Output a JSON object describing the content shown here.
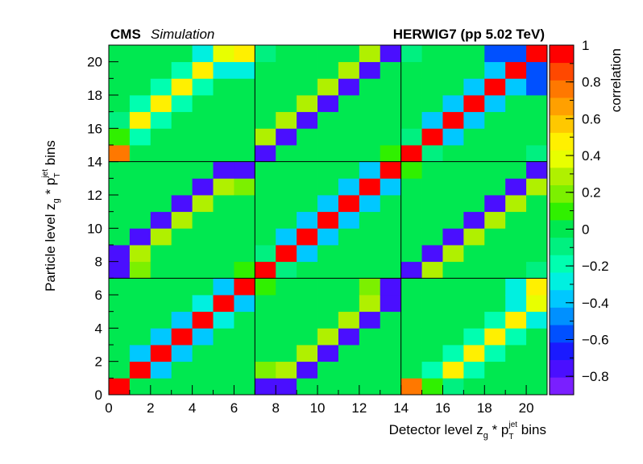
{
  "header": {
    "experiment": "CMS",
    "status": "Simulation",
    "generator": "HERWIG7 (pp 5.02 TeV)"
  },
  "chart_data": {
    "type": "heatmap",
    "xlabel": "Detector level z_g * p_T^jet bins",
    "ylabel": "Particle level z_g * p_T^jet bins",
    "zlabel": "correlation",
    "xlim": [
      0,
      21
    ],
    "ylim": [
      0,
      21
    ],
    "zlim": [
      -0.9,
      1.0
    ],
    "xticks": [
      "0",
      "2",
      "4",
      "6",
      "8",
      "10",
      "12",
      "14",
      "16",
      "18",
      "20"
    ],
    "yticks": [
      "0",
      "2",
      "4",
      "6",
      "8",
      "10",
      "12",
      "14",
      "16",
      "18",
      "20"
    ],
    "zticks": [
      "−0.8",
      "−0.6",
      "−0.4",
      "−0.2",
      "0",
      "0.2",
      "0.4",
      "0.6",
      "0.8",
      "1"
    ],
    "zticks_values": [
      -0.8,
      -0.6,
      -0.4,
      -0.2,
      0,
      0.2,
      0.4,
      0.6,
      0.8,
      1
    ],
    "block_boundaries": [
      7,
      14
    ],
    "default_value": 0.0,
    "cells": [
      [
        0,
        0,
        1.0
      ],
      [
        1,
        1,
        1.0
      ],
      [
        2,
        2,
        1.0
      ],
      [
        3,
        3,
        1.0
      ],
      [
        4,
        4,
        1.0
      ],
      [
        5,
        5,
        1.0
      ],
      [
        6,
        6,
        1.0
      ],
      [
        7,
        7,
        1.0
      ],
      [
        8,
        8,
        1.0
      ],
      [
        9,
        9,
        1.0
      ],
      [
        10,
        10,
        1.0
      ],
      [
        11,
        11,
        1.0
      ],
      [
        12,
        12,
        1.0
      ],
      [
        13,
        13,
        1.0
      ],
      [
        1,
        0,
        0.0
      ],
      [
        0,
        1,
        0.0
      ],
      [
        1,
        2,
        -0.4
      ],
      [
        2,
        1,
        -0.4
      ],
      [
        2,
        3,
        -0.4
      ],
      [
        3,
        2,
        -0.4
      ],
      [
        3,
        4,
        -0.4
      ],
      [
        4,
        3,
        -0.4
      ],
      [
        4,
        5,
        -0.25
      ],
      [
        5,
        4,
        -0.25
      ],
      [
        5,
        6,
        -0.4
      ],
      [
        6,
        5,
        -0.4
      ],
      [
        6,
        0,
        0.0
      ],
      [
        0,
        6,
        0.0
      ],
      [
        7,
        0,
        -0.8
      ],
      [
        0,
        7,
        -0.8
      ],
      [
        7,
        1,
        0.2
      ],
      [
        1,
        7,
        0.2
      ],
      [
        7,
        6,
        0.1
      ],
      [
        6,
        7,
        0.1
      ],
      [
        7,
        8,
        -0.1
      ],
      [
        8,
        7,
        -0.1
      ],
      [
        8,
        9,
        -0.4
      ],
      [
        9,
        8,
        -0.4
      ],
      [
        9,
        10,
        -0.4
      ],
      [
        10,
        9,
        -0.4
      ],
      [
        10,
        11,
        -0.4
      ],
      [
        11,
        10,
        -0.4
      ],
      [
        11,
        12,
        -0.4
      ],
      [
        12,
        11,
        -0.4
      ],
      [
        12,
        13,
        -0.4
      ],
      [
        13,
        12,
        -0.4
      ],
      [
        13,
        6,
        -0.8
      ],
      [
        6,
        13,
        -0.8
      ],
      [
        0,
        8,
        -0.8
      ],
      [
        8,
        0,
        -0.8
      ],
      [
        1,
        8,
        0.3
      ],
      [
        8,
        1,
        0.3
      ],
      [
        1,
        9,
        -0.8
      ],
      [
        9,
        1,
        -0.8
      ],
      [
        2,
        9,
        0.3
      ],
      [
        9,
        2,
        0.3
      ],
      [
        2,
        10,
        -0.8
      ],
      [
        10,
        2,
        -0.8
      ],
      [
        3,
        10,
        0.3
      ],
      [
        10,
        3,
        0.3
      ],
      [
        3,
        11,
        -0.8
      ],
      [
        11,
        3,
        -0.8
      ],
      [
        4,
        11,
        0.3
      ],
      [
        11,
        4,
        0.3
      ],
      [
        4,
        12,
        -0.8
      ],
      [
        12,
        4,
        -0.8
      ],
      [
        5,
        12,
        0.3
      ],
      [
        12,
        5,
        0.3
      ],
      [
        5,
        13,
        -0.8
      ],
      [
        13,
        5,
        -0.8
      ],
      [
        6,
        12,
        0.2
      ],
      [
        12,
        6,
        0.2
      ],
      [
        14,
        14,
        1.0
      ],
      [
        15,
        15,
        1.0
      ],
      [
        16,
        16,
        1.0
      ],
      [
        17,
        17,
        1.0
      ],
      [
        18,
        18,
        1.0
      ],
      [
        19,
        19,
        1.0
      ],
      [
        20,
        20,
        1.0
      ],
      [
        14,
        13,
        0.1
      ],
      [
        13,
        14,
        0.1
      ],
      [
        14,
        7,
        -0.8
      ],
      [
        7,
        14,
        -0.8
      ],
      [
        15,
        8,
        -0.8
      ],
      [
        8,
        15,
        -0.8
      ],
      [
        16,
        9,
        -0.8
      ],
      [
        9,
        16,
        -0.8
      ],
      [
        17,
        10,
        -0.8
      ],
      [
        10,
        17,
        -0.8
      ],
      [
        18,
        11,
        -0.8
      ],
      [
        11,
        18,
        -0.8
      ],
      [
        19,
        12,
        -0.8
      ],
      [
        12,
        19,
        -0.8
      ],
      [
        20,
        13,
        -0.8
      ],
      [
        13,
        20,
        -0.8
      ],
      [
        15,
        7,
        0.3
      ],
      [
        7,
        15,
        0.3
      ],
      [
        16,
        8,
        0.3
      ],
      [
        8,
        16,
        0.3
      ],
      [
        17,
        9,
        0.3
      ],
      [
        9,
        17,
        0.3
      ],
      [
        18,
        10,
        0.3
      ],
      [
        10,
        18,
        0.3
      ],
      [
        19,
        11,
        0.3
      ],
      [
        11,
        19,
        0.3
      ],
      [
        20,
        12,
        0.3
      ],
      [
        12,
        20,
        0.3
      ],
      [
        15,
        0,
        0.1
      ],
      [
        0,
        15,
        0.1
      ],
      [
        16,
        1,
        0.45
      ],
      [
        1,
        16,
        0.45
      ],
      [
        17,
        2,
        0.5
      ],
      [
        2,
        17,
        0.5
      ],
      [
        18,
        3,
        0.5
      ],
      [
        3,
        18,
        0.5
      ],
      [
        19,
        4,
        0.5
      ],
      [
        4,
        19,
        0.5
      ],
      [
        20,
        5,
        0.4
      ],
      [
        5,
        20,
        0.4
      ],
      [
        20,
        6,
        0.5
      ],
      [
        6,
        20,
        0.5
      ],
      [
        14,
        0,
        0.75
      ],
      [
        0,
        14,
        0.75
      ],
      [
        16,
        0,
        -0.1
      ],
      [
        0,
        16,
        -0.1
      ],
      [
        17,
        1,
        -0.2
      ],
      [
        1,
        17,
        -0.2
      ],
      [
        18,
        2,
        -0.2
      ],
      [
        2,
        18,
        -0.2
      ],
      [
        19,
        3,
        -0.2
      ],
      [
        3,
        19,
        -0.2
      ],
      [
        20,
        4,
        -0.25
      ],
      [
        4,
        20,
        -0.25
      ],
      [
        15,
        1,
        -0.2
      ],
      [
        1,
        15,
        -0.2
      ],
      [
        16,
        2,
        -0.2
      ],
      [
        2,
        16,
        -0.2
      ],
      [
        17,
        3,
        -0.2
      ],
      [
        3,
        17,
        -0.2
      ],
      [
        18,
        4,
        -0.2
      ],
      [
        4,
        18,
        -0.2
      ],
      [
        19,
        5,
        -0.3
      ],
      [
        5,
        19,
        -0.3
      ],
      [
        19,
        6,
        -0.3
      ],
      [
        6,
        19,
        -0.3
      ],
      [
        20,
        6,
        0.5
      ],
      [
        15,
        14,
        -0.1
      ],
      [
        14,
        15,
        -0.1
      ],
      [
        15,
        16,
        -0.4
      ],
      [
        16,
        15,
        -0.4
      ],
      [
        16,
        17,
        -0.4
      ],
      [
        17,
        16,
        -0.4
      ],
      [
        17,
        18,
        -0.4
      ],
      [
        18,
        17,
        -0.4
      ],
      [
        18,
        19,
        -0.4
      ],
      [
        19,
        18,
        -0.4
      ],
      [
        19,
        20,
        -0.6
      ],
      [
        20,
        19,
        -0.6
      ],
      [
        20,
        14,
        -0.1
      ],
      [
        14,
        20,
        -0.1
      ],
      [
        14,
        1,
        0.0
      ],
      [
        1,
        14,
        0.0
      ],
      [
        15,
        2,
        0.0
      ],
      [
        16,
        3,
        0.0
      ],
      [
        20,
        7,
        -0.1
      ],
      [
        7,
        20,
        -0.1
      ],
      [
        20,
        20,
        1.0
      ],
      [
        19,
        19,
        1.0
      ],
      [
        20,
        18,
        -0.55
      ],
      [
        18,
        20,
        -0.55
      ]
    ]
  }
}
